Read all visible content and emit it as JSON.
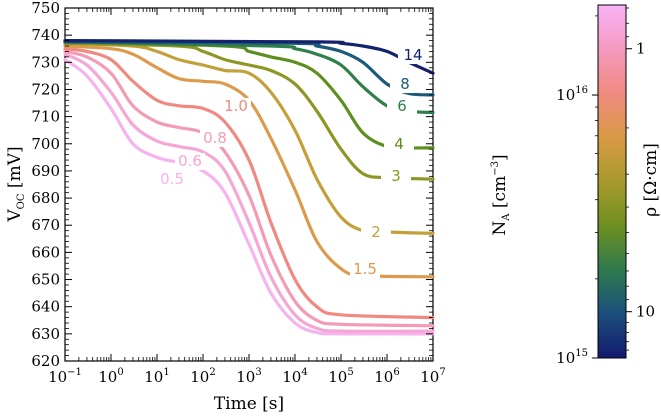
{
  "chart_data": {
    "type": "line",
    "xlabel": "Time [s]",
    "ylabel": "V_OC [mV]",
    "ylabel_main": "V",
    "ylabel_sub": "OC",
    "ylabel_unit": "[mV]",
    "xscale": "log",
    "xlim": [
      0.1,
      10000000
    ],
    "ylim": [
      620,
      750
    ],
    "grid": false,
    "x_tick_bases": [
      "10",
      "10",
      "10",
      "10",
      "10",
      "10",
      "10",
      "10",
      "10"
    ],
    "x_tick_exps": [
      "−1",
      "0",
      "1",
      "2",
      "3",
      "4",
      "5",
      "6",
      "7"
    ],
    "y_ticks": [
      "620",
      "630",
      "640",
      "650",
      "660",
      "670",
      "680",
      "690",
      "700",
      "710",
      "720",
      "730",
      "740",
      "750"
    ],
    "series": [
      {
        "name": "0.5",
        "color": "#f7b3ee",
        "points": [
          [
            0.1,
            731
          ],
          [
            0.3,
            725
          ],
          [
            1,
            713
          ],
          [
            3,
            700
          ],
          [
            10,
            695
          ],
          [
            30,
            693
          ],
          [
            100,
            690
          ],
          [
            300,
            682
          ],
          [
            1000,
            663
          ],
          [
            3000,
            645
          ],
          [
            10000,
            634
          ],
          [
            30000,
            630.5
          ],
          [
            100000,
            630
          ],
          [
            10000000,
            630
          ]
        ]
      },
      {
        "name": "0.6",
        "color": "#f6a6d4",
        "points": [
          [
            0.1,
            733
          ],
          [
            0.3,
            729
          ],
          [
            1,
            719
          ],
          [
            3,
            707
          ],
          [
            10,
            701
          ],
          [
            30,
            699
          ],
          [
            100,
            697
          ],
          [
            300,
            690
          ],
          [
            1000,
            671
          ],
          [
            3000,
            651
          ],
          [
            10000,
            637
          ],
          [
            30000,
            632
          ],
          [
            100000,
            631
          ],
          [
            10000000,
            631
          ]
        ]
      },
      {
        "name": "0.8",
        "color": "#f49bb4",
        "points": [
          [
            0.1,
            734
          ],
          [
            0.3,
            732
          ],
          [
            1,
            726
          ],
          [
            3,
            714
          ],
          [
            10,
            708
          ],
          [
            30,
            706
          ],
          [
            100,
            704
          ],
          [
            300,
            697
          ],
          [
            1000,
            681
          ],
          [
            3000,
            659
          ],
          [
            10000,
            642
          ],
          [
            30000,
            635
          ],
          [
            100000,
            633.5
          ],
          [
            10000000,
            633
          ]
        ]
      },
      {
        "name": "1.0",
        "color": "#f08a80",
        "points": [
          [
            0.1,
            735
          ],
          [
            0.3,
            734
          ],
          [
            1,
            731
          ],
          [
            3,
            723
          ],
          [
            10,
            716
          ],
          [
            30,
            714
          ],
          [
            100,
            713
          ],
          [
            300,
            708
          ],
          [
            1000,
            694
          ],
          [
            3000,
            671
          ],
          [
            10000,
            650
          ],
          [
            30000,
            640
          ],
          [
            100000,
            637
          ],
          [
            10000000,
            636
          ]
        ]
      },
      {
        "name": "1.5",
        "color": "#dd9a4d",
        "points": [
          [
            0.1,
            736
          ],
          [
            1,
            735
          ],
          [
            3,
            733
          ],
          [
            10,
            728
          ],
          [
            30,
            724
          ],
          [
            100,
            723
          ],
          [
            300,
            722
          ],
          [
            1000,
            716
          ],
          [
            3000,
            702
          ],
          [
            10000,
            683
          ],
          [
            30000,
            664
          ],
          [
            100000,
            654
          ],
          [
            300000,
            651.5
          ],
          [
            10000000,
            651
          ]
        ]
      },
      {
        "name": "2",
        "color": "#c4a03a",
        "points": [
          [
            0.1,
            737
          ],
          [
            3,
            736
          ],
          [
            10,
            734
          ],
          [
            30,
            731
          ],
          [
            100,
            729
          ],
          [
            300,
            727
          ],
          [
            1000,
            726
          ],
          [
            3000,
            719
          ],
          [
            10000,
            705
          ],
          [
            30000,
            687
          ],
          [
            100000,
            673
          ],
          [
            300000,
            668
          ],
          [
            1000000,
            667.5
          ],
          [
            10000000,
            667
          ]
        ]
      },
      {
        "name": "3",
        "color": "#8e9624",
        "points": [
          [
            0.1,
            737
          ],
          [
            30,
            736
          ],
          [
            100,
            734
          ],
          [
            300,
            731
          ],
          [
            1000,
            729
          ],
          [
            3000,
            727
          ],
          [
            10000,
            722
          ],
          [
            30000,
            712
          ],
          [
            100000,
            698
          ],
          [
            300000,
            689
          ],
          [
            1000000,
            687.5
          ],
          [
            10000000,
            687
          ]
        ]
      },
      {
        "name": "4",
        "color": "#5e8e1e",
        "points": [
          [
            0.1,
            737.5
          ],
          [
            300,
            736
          ],
          [
            1000,
            734
          ],
          [
            3000,
            732
          ],
          [
            10000,
            730
          ],
          [
            30000,
            726
          ],
          [
            100000,
            716
          ],
          [
            300000,
            704
          ],
          [
            1000000,
            699
          ],
          [
            3000000,
            698.5
          ],
          [
            10000000,
            698.5
          ]
        ]
      },
      {
        "name": "6",
        "color": "#2f7f4a",
        "points": [
          [
            0.1,
            737.5
          ],
          [
            3000,
            736
          ],
          [
            10000,
            735
          ],
          [
            30000,
            733
          ],
          [
            100000,
            729
          ],
          [
            300000,
            721
          ],
          [
            1000000,
            714
          ],
          [
            3000000,
            712
          ],
          [
            10000000,
            711.5
          ]
        ]
      },
      {
        "name": "8",
        "color": "#1b5a78",
        "points": [
          [
            0.1,
            737.5
          ],
          [
            10000,
            737
          ],
          [
            30000,
            736
          ],
          [
            100000,
            734
          ],
          [
            300000,
            730
          ],
          [
            1000000,
            722
          ],
          [
            3000000,
            718.5
          ],
          [
            10000000,
            718
          ]
        ]
      },
      {
        "name": "14",
        "color": "#14226e",
        "points": [
          [
            0.1,
            738
          ],
          [
            30000,
            737.5
          ],
          [
            100000,
            737
          ],
          [
            300000,
            736
          ],
          [
            1000000,
            734
          ],
          [
            3000000,
            730
          ],
          [
            10000000,
            726
          ]
        ]
      }
    ],
    "colorbar": {
      "left_label_main": "N",
      "left_label_sub": "A",
      "left_label_unit": "[cm",
      "left_label_exp": "−3",
      "left_label_close": "]",
      "right_label": "ρ [Ω·cm]",
      "na_ticks": [
        {
          "base": "10",
          "exp": "15",
          "value": 1000000000000000.0
        },
        {
          "base": "10",
          "exp": "16",
          "value": 1e+16
        }
      ],
      "rho_ticks": [
        {
          "label": "1",
          "value": 1
        },
        {
          "label": "10",
          "value": 10
        }
      ],
      "na_range": [
        1000000000000000.0,
        2.2e+16
      ],
      "gradient_colors": [
        "#f7b3f7",
        "#f59ac0",
        "#f08a80",
        "#d99a45",
        "#a89a2c",
        "#6e9020",
        "#2f7a4e",
        "#1b4f7c",
        "#141a6e"
      ]
    }
  }
}
